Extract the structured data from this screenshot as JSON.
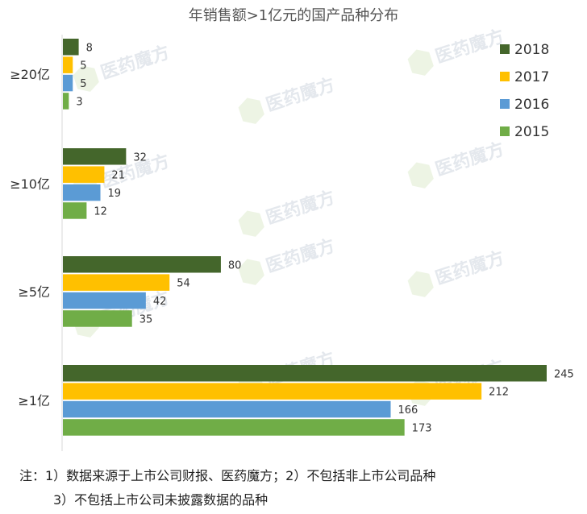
{
  "chart_data": {
    "type": "bar",
    "orientation": "horizontal",
    "title": "年销售额>1亿元的国产品种分布",
    "categories": [
      "≥20亿",
      "≥10亿",
      "≥5亿",
      "≥1亿"
    ],
    "series": [
      {
        "name": "2018",
        "color": "#44662b",
        "values": [
          8,
          32,
          80,
          245
        ]
      },
      {
        "name": "2017",
        "color": "#ffc000",
        "values": [
          5,
          21,
          54,
          212
        ]
      },
      {
        "name": "2016",
        "color": "#5b9bd5",
        "values": [
          5,
          19,
          42,
          166
        ]
      },
      {
        "name": "2015",
        "color": "#70ad47",
        "values": [
          3,
          12,
          35,
          173
        ]
      }
    ],
    "xlim": [
      0,
      250
    ],
    "grid": false,
    "legend_position": "top-right"
  },
  "watermark": {
    "text": "医药魔方",
    "icon": "cube-logo-icon"
  },
  "notes": {
    "line1": "注：1）数据来源于上市公司财报、医药魔方；2）不包括非上市公司品种",
    "line2": "3）不包括上市公司未披露数据的品种"
  }
}
